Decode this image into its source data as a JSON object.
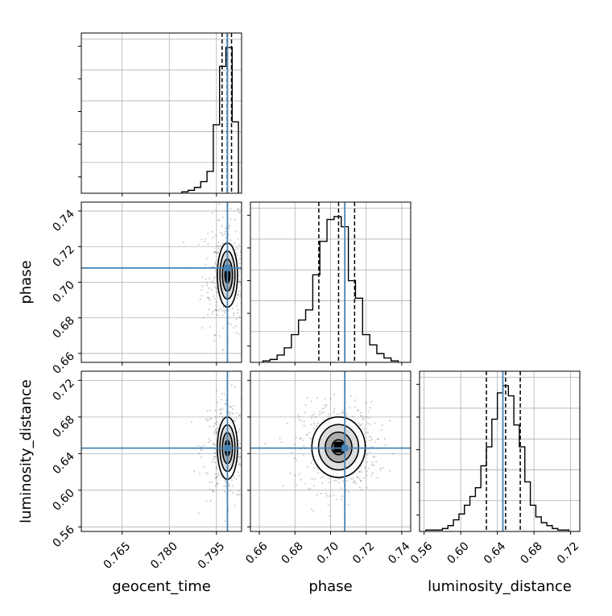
{
  "figure": {
    "type": "corner"
  },
  "colors": {
    "truth": "#4682b4",
    "hist": "#000000",
    "grid": "#b0b0b0",
    "scatter": "#000000"
  },
  "chart_data": {
    "type": "corner",
    "parameters": [
      {
        "key": "geocent_time",
        "label": "geocent_time"
      },
      {
        "key": "phase",
        "label": "phase"
      },
      {
        "key": "luminosity_distance",
        "label": "luminosity_distance"
      }
    ],
    "ranges": {
      "geocent_time": [
        0.752,
        0.803
      ],
      "phase": [
        0.655,
        0.745
      ],
      "luminosity_distance": [
        0.555,
        0.73
      ]
    },
    "ticks": {
      "geocent_time": [
        0.765,
        0.78,
        0.795
      ],
      "phase": [
        0.66,
        0.68,
        0.7,
        0.72,
        0.74
      ],
      "luminosity_distance": [
        0.56,
        0.6,
        0.64,
        0.68,
        0.72
      ]
    },
    "tick_labels": {
      "geocent_time": [
        "0.765",
        "0.780",
        "0.795"
      ],
      "phase": [
        "0.66",
        "0.68",
        "0.70",
        "0.72",
        "0.74"
      ],
      "luminosity_distance": [
        "0.56",
        "0.60",
        "0.64",
        "0.68",
        "0.72"
      ]
    },
    "truths": {
      "geocent_time": 0.7985,
      "phase": 0.708,
      "luminosity_distance": 0.646
    },
    "quantiles": {
      "geocent_time": [
        0.7968,
        0.7984,
        0.7998
      ],
      "phase": [
        0.6934,
        0.7045,
        0.7135
      ],
      "luminosity_distance": [
        0.628,
        0.649,
        0.665
      ]
    },
    "histograms": {
      "geocent_time": {
        "edges": [
          0.784,
          0.786,
          0.788,
          0.79,
          0.792,
          0.794,
          0.796,
          0.798,
          0.8,
          0.802
        ],
        "counts": [
          0.01,
          0.02,
          0.04,
          0.08,
          0.15,
          0.47,
          0.87,
          1.0,
          0.49
        ]
      },
      "phase": {
        "edges": [
          0.662,
          0.666,
          0.67,
          0.674,
          0.678,
          0.682,
          0.686,
          0.69,
          0.694,
          0.698,
          0.702,
          0.706,
          0.71,
          0.714,
          0.718,
          0.722,
          0.726,
          0.73,
          0.734,
          0.738
        ],
        "counts": [
          0.01,
          0.02,
          0.05,
          0.1,
          0.19,
          0.29,
          0.36,
          0.6,
          0.83,
          0.98,
          1.0,
          0.93,
          0.56,
          0.44,
          0.19,
          0.12,
          0.06,
          0.03,
          0.01
        ]
      },
      "luminosity_distance": {
        "edges": [
          0.562,
          0.568,
          0.574,
          0.58,
          0.586,
          0.592,
          0.598,
          0.604,
          0.61,
          0.616,
          0.622,
          0.628,
          0.634,
          0.64,
          0.646,
          0.652,
          0.658,
          0.664,
          0.67,
          0.676,
          0.682,
          0.688,
          0.694,
          0.7,
          0.706,
          0.712,
          0.718
        ],
        "counts": [
          0.01,
          0.01,
          0.01,
          0.02,
          0.04,
          0.08,
          0.12,
          0.18,
          0.24,
          0.3,
          0.45,
          0.58,
          0.77,
          0.95,
          1.0,
          0.93,
          0.73,
          0.58,
          0.34,
          0.18,
          0.1,
          0.06,
          0.04,
          0.02,
          0.01,
          0.01
        ]
      }
    },
    "density_panels": [
      {
        "x": "geocent_time",
        "y": "phase",
        "center": [
          0.7985,
          0.704
        ],
        "sigma": [
          0.0016,
          0.009
        ],
        "rho": 0.0,
        "scatter_spread": [
          0.004,
          0.016
        ],
        "scatter_count": 340,
        "contour_levels": [
          0.5,
          1.0,
          1.5,
          2.0
        ]
      },
      {
        "x": "geocent_time",
        "y": "luminosity_distance",
        "center": [
          0.7985,
          0.646
        ],
        "sigma": [
          0.0016,
          0.017
        ],
        "rho": 0.0,
        "scatter_spread": [
          0.004,
          0.028
        ],
        "scatter_count": 340,
        "contour_levels": [
          0.5,
          1.0,
          1.5,
          2.0
        ]
      },
      {
        "x": "phase",
        "y": "luminosity_distance",
        "center": [
          0.7045,
          0.647
        ],
        "sigma": [
          0.0075,
          0.0165
        ],
        "rho": 0.05,
        "scatter_spread": [
          0.011,
          0.024
        ],
        "scatter_count": 520,
        "contour_levels": [
          0.5,
          1.0,
          1.5,
          2.0
        ]
      }
    ]
  }
}
